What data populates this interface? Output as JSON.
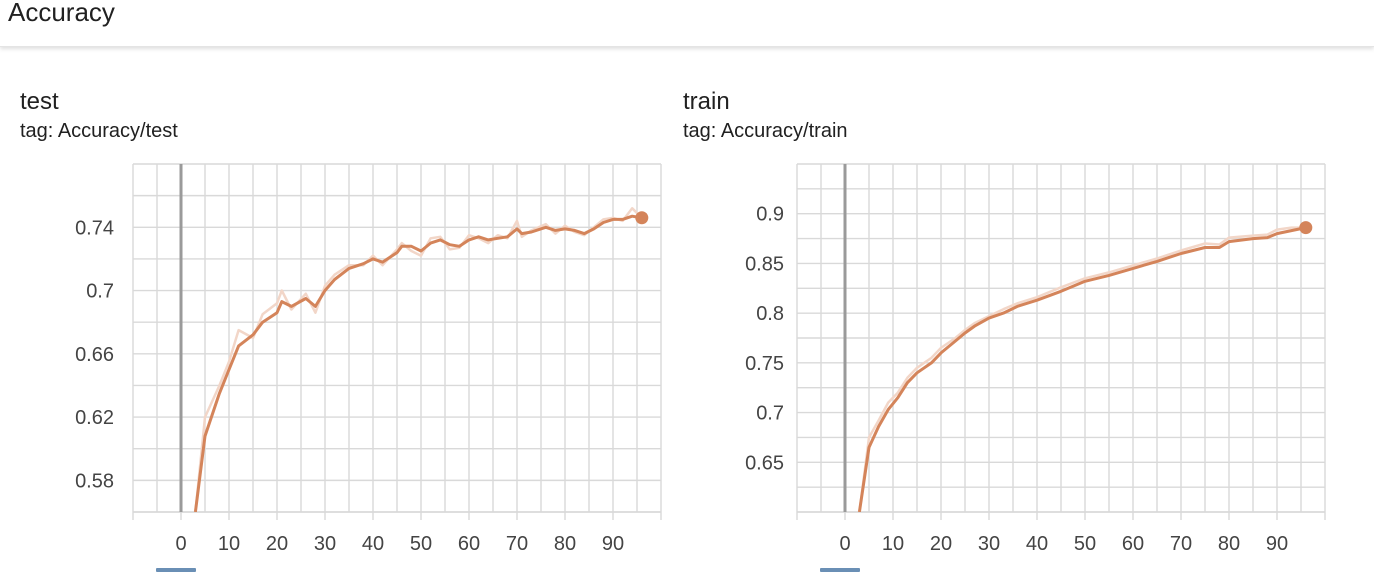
{
  "section": {
    "title": "Accuracy"
  },
  "cards": [
    {
      "title": "test",
      "tag": "tag: Accuracy/test"
    },
    {
      "title": "train",
      "tag": "tag: Accuracy/train"
    }
  ],
  "colors": {
    "series": "#d4845a",
    "series_raw": "#f2d6c8",
    "grid": "#d9d9d9",
    "zero_line": "#9a9a9a",
    "legend_swatch": "#6a8fb5"
  },
  "chart_data": [
    {
      "type": "line",
      "title": "test",
      "xlabel": "",
      "ylabel": "",
      "xlim": [
        -10,
        100
      ],
      "ylim": [
        0.56,
        0.78
      ],
      "x_ticks": [
        0,
        10,
        20,
        30,
        40,
        50,
        60,
        70,
        80,
        90
      ],
      "y_ticks": [
        0.58,
        0.62,
        0.66,
        0.7,
        0.74
      ],
      "y_tick_labels": [
        "0.58",
        "0.62",
        "0.66",
        "0.7",
        "0.74"
      ],
      "grid": true,
      "series": [
        {
          "x": [
            3,
            5,
            8,
            10,
            12,
            15,
            17,
            20,
            21,
            23,
            26,
            28,
            30,
            32,
            35,
            38,
            40,
            42,
            45,
            46,
            48,
            50,
            52,
            54,
            56,
            58,
            60,
            62,
            64,
            66,
            68,
            70,
            71,
            73,
            76,
            78,
            80,
            82,
            84,
            86,
            88,
            90,
            92,
            94,
            96
          ],
          "y": [
            0.56,
            0.608,
            0.635,
            0.65,
            0.665,
            0.672,
            0.68,
            0.686,
            0.693,
            0.69,
            0.695,
            0.69,
            0.7,
            0.707,
            0.714,
            0.717,
            0.72,
            0.718,
            0.724,
            0.728,
            0.728,
            0.725,
            0.73,
            0.732,
            0.729,
            0.728,
            0.732,
            0.734,
            0.732,
            0.733,
            0.734,
            0.739,
            0.736,
            0.737,
            0.74,
            0.738,
            0.739,
            0.738,
            0.736,
            0.739,
            0.743,
            0.745,
            0.745,
            0.747,
            0.746
          ],
          "smoothed": [
            0.56,
            0.608,
            0.635,
            0.65,
            0.665,
            0.672,
            0.68,
            0.686,
            0.693,
            0.69,
            0.695,
            0.69,
            0.7,
            0.707,
            0.714,
            0.717,
            0.72,
            0.718,
            0.724,
            0.728,
            0.728,
            0.725,
            0.73,
            0.732,
            0.729,
            0.728,
            0.732,
            0.734,
            0.732,
            0.733,
            0.734,
            0.739,
            0.736,
            0.737,
            0.74,
            0.738,
            0.739,
            0.738,
            0.736,
            0.739,
            0.743,
            0.745,
            0.745,
            0.747,
            0.746
          ],
          "raw": [
            0.56,
            0.62,
            0.64,
            0.655,
            0.675,
            0.67,
            0.685,
            0.692,
            0.7,
            0.688,
            0.698,
            0.686,
            0.703,
            0.71,
            0.716,
            0.716,
            0.722,
            0.716,
            0.726,
            0.73,
            0.725,
            0.722,
            0.733,
            0.734,
            0.726,
            0.727,
            0.735,
            0.733,
            0.73,
            0.735,
            0.733,
            0.744,
            0.734,
            0.738,
            0.742,
            0.736,
            0.741,
            0.737,
            0.735,
            0.74,
            0.745,
            0.746,
            0.744,
            0.752,
            0.746
          ]
        }
      ]
    },
    {
      "type": "line",
      "title": "train",
      "xlabel": "",
      "ylabel": "",
      "xlim": [
        -10,
        100
      ],
      "ylim": [
        0.6,
        0.95
      ],
      "x_ticks": [
        0,
        10,
        20,
        30,
        40,
        50,
        60,
        70,
        80,
        90
      ],
      "y_ticks": [
        0.65,
        0.7,
        0.75,
        0.8,
        0.85,
        0.9
      ],
      "y_tick_labels": [
        "0.65",
        "0.7",
        "0.75",
        "0.8",
        "0.85",
        "0.9"
      ],
      "grid": true,
      "series": [
        {
          "x": [
            3,
            5,
            7,
            9,
            11,
            13,
            15,
            18,
            20,
            23,
            25,
            27,
            30,
            33,
            36,
            40,
            45,
            50,
            55,
            60,
            65,
            70,
            75,
            78,
            80,
            85,
            88,
            90,
            93,
            96
          ],
          "smoothed": [
            0.6,
            0.665,
            0.686,
            0.703,
            0.715,
            0.73,
            0.74,
            0.75,
            0.76,
            0.772,
            0.78,
            0.787,
            0.795,
            0.8,
            0.807,
            0.813,
            0.822,
            0.832,
            0.838,
            0.845,
            0.852,
            0.86,
            0.866,
            0.866,
            0.872,
            0.875,
            0.876,
            0.88,
            0.883,
            0.886
          ],
          "raw": [
            0.6,
            0.675,
            0.692,
            0.71,
            0.72,
            0.735,
            0.745,
            0.755,
            0.765,
            0.775,
            0.783,
            0.79,
            0.797,
            0.804,
            0.81,
            0.816,
            0.826,
            0.835,
            0.841,
            0.848,
            0.855,
            0.863,
            0.87,
            0.869,
            0.876,
            0.878,
            0.879,
            0.884,
            0.886,
            0.886
          ]
        }
      ]
    }
  ]
}
